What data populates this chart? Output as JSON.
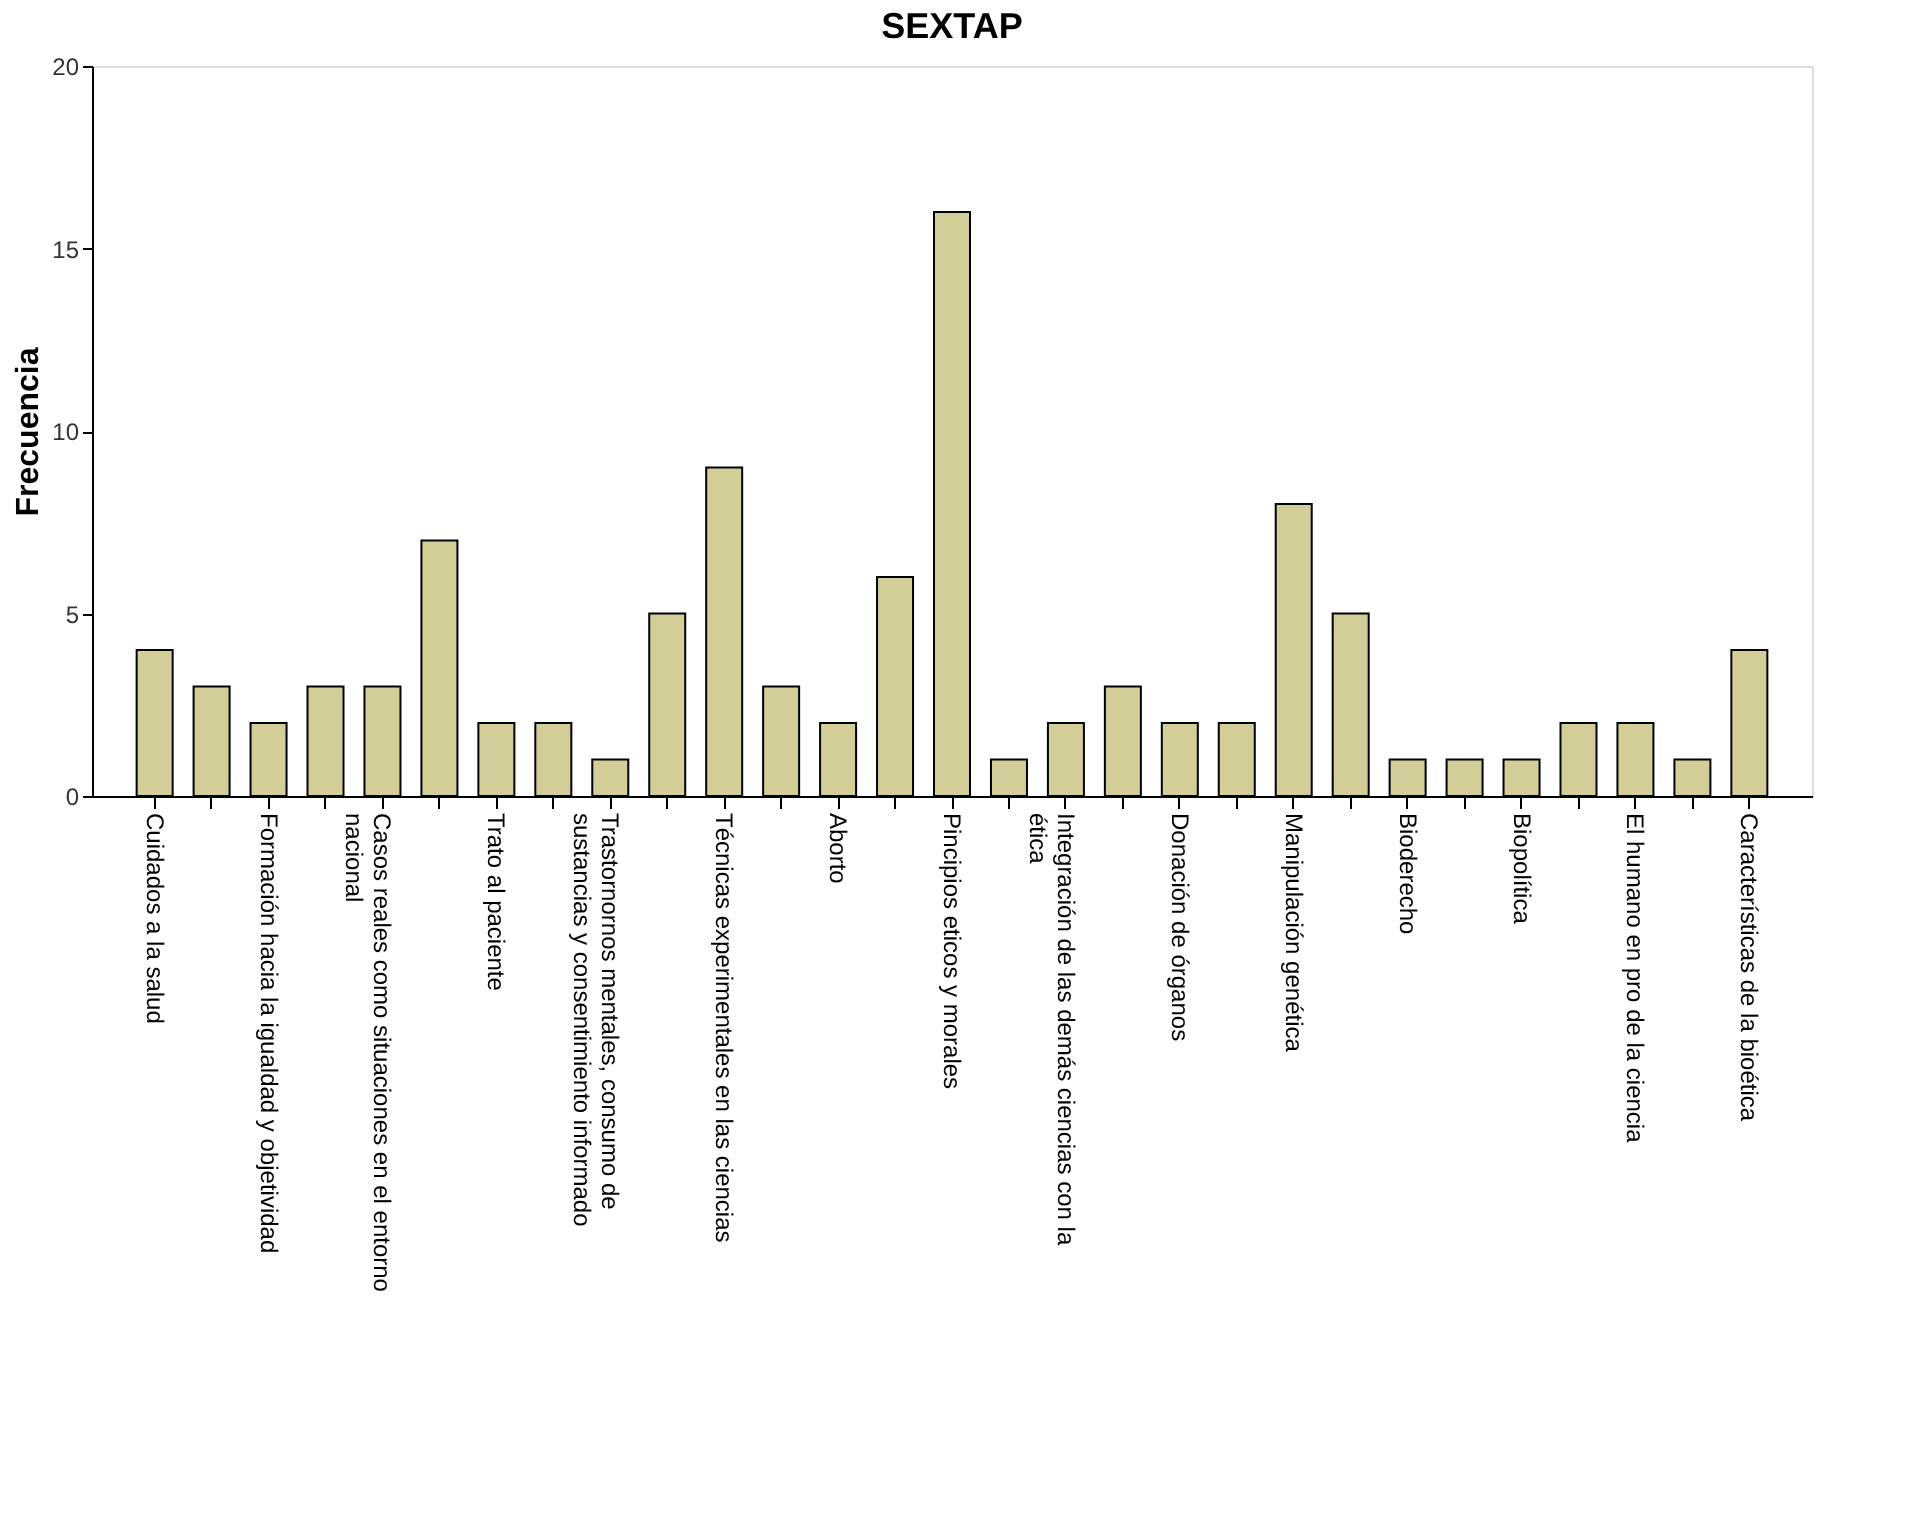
{
  "chart_data": {
    "type": "bar",
    "title": "SEXTAP",
    "ylabel": "Frecuencia",
    "categories": [
      "Cuidados a la salud",
      null,
      "Formación hacia la igualdad y objetividad",
      null,
      "Casos reales como situaciones en el entorno nacional",
      null,
      "Trato al paciente",
      null,
      "Trastornornos mentales, consumo de sustancias y consentimiento informado",
      null,
      "Técnicas experimentales en las ciencias",
      null,
      "Aborto",
      null,
      "Pincipios eticos y morales",
      null,
      "Integración de las demás ciencias con la ética",
      null,
      "Donación de órganos",
      null,
      "Manipulación genética",
      null,
      "Bioderecho",
      null,
      "Biopolítica",
      null,
      "El humano en pro de la ciencia",
      null,
      "Características de la bioética"
    ],
    "values": [
      4,
      3,
      2,
      3,
      3,
      7,
      2,
      2,
      1,
      5,
      9,
      3,
      2,
      6,
      16,
      1,
      2,
      3,
      2,
      2,
      8,
      5,
      1,
      1,
      1,
      2,
      2,
      1,
      4
    ],
    "color": "#d3ce98",
    "ylim": [
      0,
      20
    ],
    "yticks": [
      0,
      5,
      10,
      15,
      20
    ],
    "grid": false
  }
}
